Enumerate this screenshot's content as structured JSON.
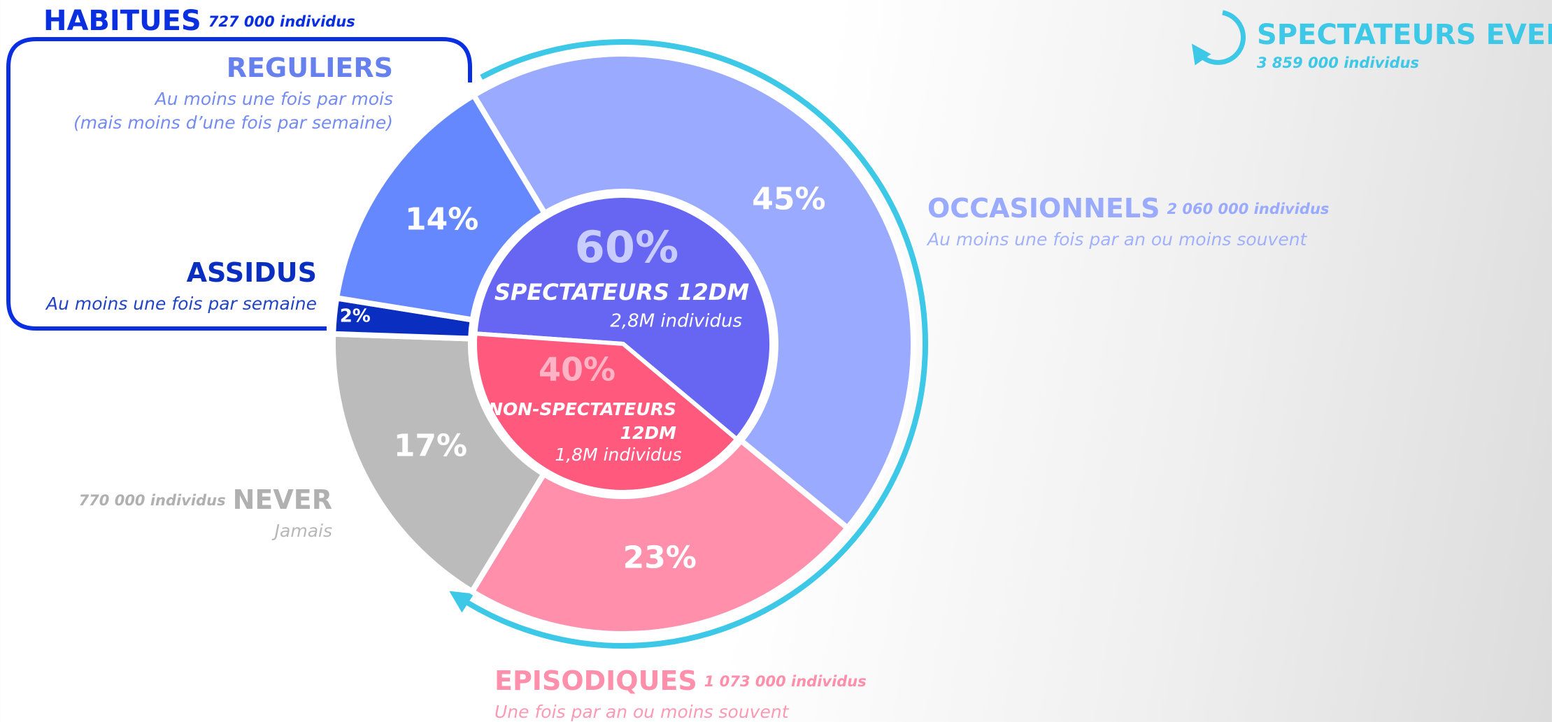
{
  "chart_data": {
    "type": "donut",
    "outer": {
      "categories": [
        "OCCASIONNELS",
        "EPISODIQUES",
        "NEVER",
        "ASSIDUS",
        "REGULIERS"
      ],
      "values": [
        45,
        23,
        17,
        2,
        14
      ],
      "value_labels": [
        "45%",
        "23%",
        "17%",
        "2%",
        "14%"
      ],
      "colors": [
        "#99aaff",
        "#ff8fab",
        "#bbbbbb",
        "#0a2fc0",
        "#6688ff"
      ],
      "counts": [
        "2 060 000 individus",
        "1 073 000 individus",
        "770 000 individus",
        null,
        null
      ],
      "descriptions": [
        [
          "Au moins une fois par an ou moins souvent"
        ],
        [
          "Une fois par an ou moins souvent"
        ],
        [
          "Jamais"
        ],
        [
          "Au moins une fois par semaine"
        ],
        [
          "Au moins une fois par mois",
          "(mais moins d’une fois par semaine)"
        ]
      ]
    },
    "inner": {
      "categories": [
        [
          "SPECTATEURS 12DM"
        ],
        [
          "NON-SPECTATEURS",
          "12DM"
        ]
      ],
      "values": [
        60,
        40
      ],
      "value_labels": [
        "60%",
        "40%"
      ],
      "colors": [
        "#6666f2",
        "#ff5a7e"
      ],
      "counts": [
        "2,8M individus",
        "1,8M individus"
      ]
    },
    "groups": [
      {
        "name": "HABITUES",
        "count": "727 000 individus",
        "color": "#0a2fe0"
      },
      {
        "name": "SPECTATEURS EVER",
        "count": "3 859 000 individus",
        "color": "#3cc8e6"
      }
    ]
  }
}
